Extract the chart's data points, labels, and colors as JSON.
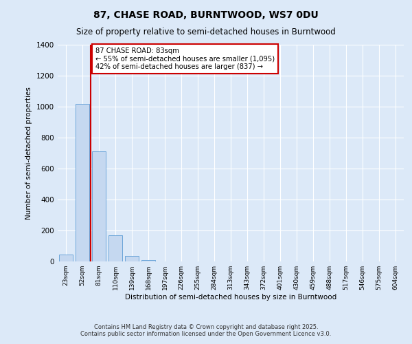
{
  "title1": "87, CHASE ROAD, BURNTWOOD, WS7 0DU",
  "title2": "Size of property relative to semi-detached houses in Burntwood",
  "xlabel": "Distribution of semi-detached houses by size in Burntwood",
  "ylabel": "Number of semi-detached properties",
  "categories": [
    "23sqm",
    "52sqm",
    "81sqm",
    "110sqm",
    "139sqm",
    "168sqm",
    "197sqm",
    "226sqm",
    "255sqm",
    "284sqm",
    "313sqm",
    "343sqm",
    "372sqm",
    "401sqm",
    "430sqm",
    "459sqm",
    "488sqm",
    "517sqm",
    "546sqm",
    "575sqm",
    "604sqm"
  ],
  "values": [
    46,
    1020,
    710,
    170,
    35,
    10,
    0,
    0,
    0,
    0,
    0,
    0,
    0,
    0,
    0,
    0,
    0,
    0,
    0,
    0,
    0
  ],
  "bar_color": "#c5d8f0",
  "bar_edge_color": "#5b9bd5",
  "vline_color": "#cc0000",
  "vline_pos": 1.5,
  "annotation_text": "87 CHASE ROAD: 83sqm\n← 55% of semi-detached houses are smaller (1,095)\n42% of semi-detached houses are larger (837) →",
  "annotation_box_color": "#ffffff",
  "annotation_box_edge": "#cc0000",
  "ylim": [
    0,
    1400
  ],
  "yticks": [
    0,
    200,
    400,
    600,
    800,
    1000,
    1200,
    1400
  ],
  "background_color": "#dce9f8",
  "plot_background": "#dce9f8",
  "grid_color": "#ffffff",
  "footer1": "Contains HM Land Registry data © Crown copyright and database right 2025.",
  "footer2": "Contains public sector information licensed under the Open Government Licence v3.0."
}
